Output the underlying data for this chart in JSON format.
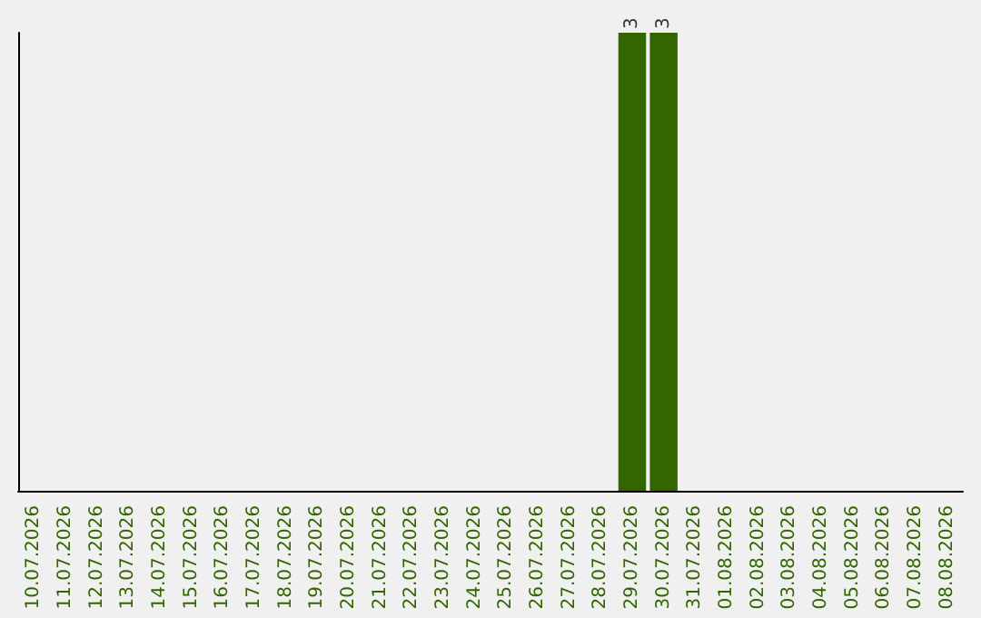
{
  "chart_data": {
    "type": "bar",
    "categories": [
      "10.07.2026",
      "11.07.2026",
      "12.07.2026",
      "13.07.2026",
      "14.07.2026",
      "15.07.2026",
      "16.07.2026",
      "17.07.2026",
      "18.07.2026",
      "19.07.2026",
      "20.07.2026",
      "21.07.2026",
      "22.07.2026",
      "23.07.2026",
      "24.07.2026",
      "25.07.2026",
      "26.07.2026",
      "27.07.2026",
      "28.07.2026",
      "29.07.2026",
      "30.07.2026",
      "31.07.2026",
      "01.08.2026",
      "02.08.2026",
      "03.08.2026",
      "04.08.2026",
      "05.08.2026",
      "06.08.2026",
      "07.08.2026",
      "08.08.2026"
    ],
    "values": [
      null,
      null,
      null,
      null,
      null,
      null,
      null,
      null,
      null,
      null,
      null,
      null,
      null,
      null,
      null,
      null,
      null,
      null,
      null,
      3,
      3,
      null,
      null,
      null,
      null,
      null,
      null,
      null,
      null,
      null
    ],
    "color": "#336600",
    "data_labels": true,
    "grid": false
  }
}
